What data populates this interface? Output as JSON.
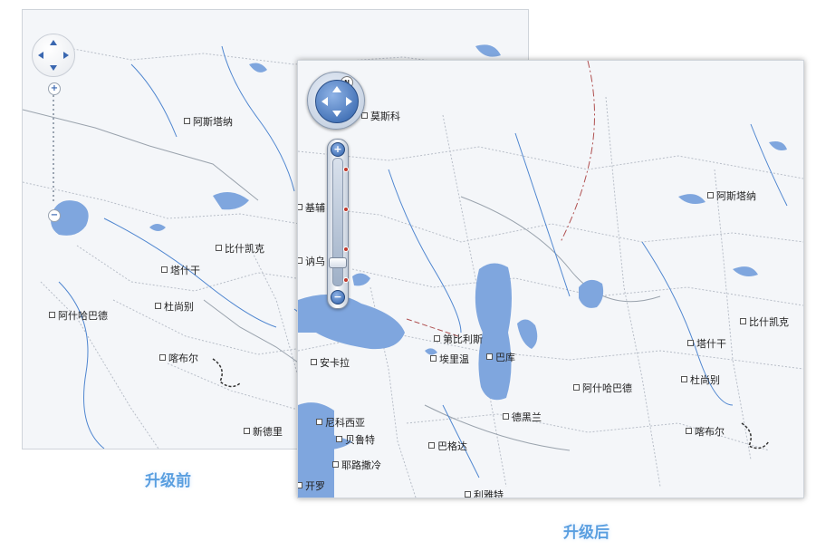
{
  "colors": {
    "water": "#7fa6de",
    "land": "#f4f6f9",
    "caption": "#5a9fe0",
    "border": "#b8bec8",
    "river": "#4f86d0"
  },
  "before": {
    "caption": "升级前",
    "zoom_in": "+",
    "zoom_out": "−",
    "cities": [
      "阿斯塔纳",
      "比什凯克",
      "塔什干",
      "杜尚别",
      "阿什哈巴德",
      "喀布尔",
      "新德里"
    ]
  },
  "after": {
    "caption": "升级后",
    "compass": "N",
    "zoom_in": "+",
    "zoom_out": "−",
    "cities": [
      "莫斯科",
      "基辅",
      "阿斯塔纳",
      "讷乌",
      "比什凯克",
      "第比利斯",
      "塔什干",
      "安卡拉",
      "埃里温",
      "巴库",
      "杜尚别",
      "阿什哈巴德",
      "德黑兰",
      "尼科西亚",
      "贝鲁特",
      "喀布尔",
      "巴格达",
      "耶路撒冷",
      "开罗",
      "利雅特"
    ]
  }
}
